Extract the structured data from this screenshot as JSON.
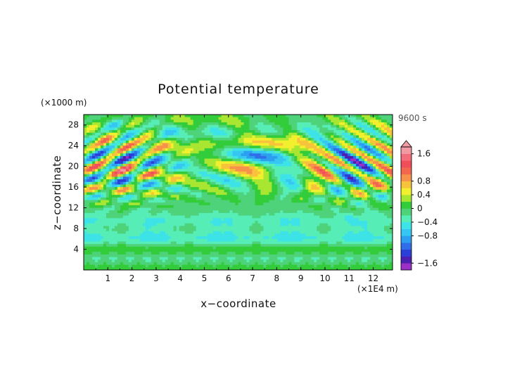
{
  "chart_data": {
    "type": "heatmap",
    "title": "Potential temperature",
    "xlabel": "x−coordinate",
    "ylabel": "z−coordinate",
    "x_unit": "(×1E4 m)",
    "y_unit": "(×1000 m)",
    "time_label": "9600 s",
    "xlim": [
      0,
      12.8
    ],
    "ylim": [
      0,
      30
    ],
    "x_ticks": [
      "1",
      "2",
      "3",
      "4",
      "5",
      "6",
      "7",
      "8",
      "9",
      "10",
      "11",
      "12"
    ],
    "y_ticks": [
      "4",
      "8",
      "12",
      "16",
      "20",
      "24",
      "28"
    ],
    "colorbar": {
      "levels": [
        -1.8,
        -1.6,
        -1.4,
        -1.2,
        -1.0,
        -0.8,
        -0.6,
        -0.4,
        -0.2,
        0,
        0.2,
        0.4,
        0.6,
        0.8,
        1.0,
        1.2,
        1.4,
        1.6,
        1.8
      ],
      "colors": [
        "#9b30c8",
        "#4b1fb0",
        "#2a3fd8",
        "#2f6ee8",
        "#2d9ff0",
        "#36c6f2",
        "#3de3e6",
        "#56eeb6",
        "#4ed27a",
        "#33cc3a",
        "#a8e632",
        "#f2ef2e",
        "#f7c33a",
        "#f6924a",
        "#f2674e",
        "#ef4e5a",
        "#f36c7a",
        "#f29aa4"
      ],
      "tick_labels": [
        "1.6",
        "0.8",
        "0.4",
        "0",
        "−0.4",
        "−0.8",
        "−1.6"
      ],
      "tick_values": [
        1.6,
        0.8,
        0.4,
        0,
        -0.4,
        -0.8,
        -1.6
      ],
      "extends": "both"
    },
    "note": "Field of potential temperature perturbation: near-zero green/cyan lower region with banded structures near z=2 and z=6; arc of slanted wave crests radiating from center above z=12; alternating positive (orange/red) and negative (blue) cells in upper corners; yellow horizontal bands at the top center."
  }
}
